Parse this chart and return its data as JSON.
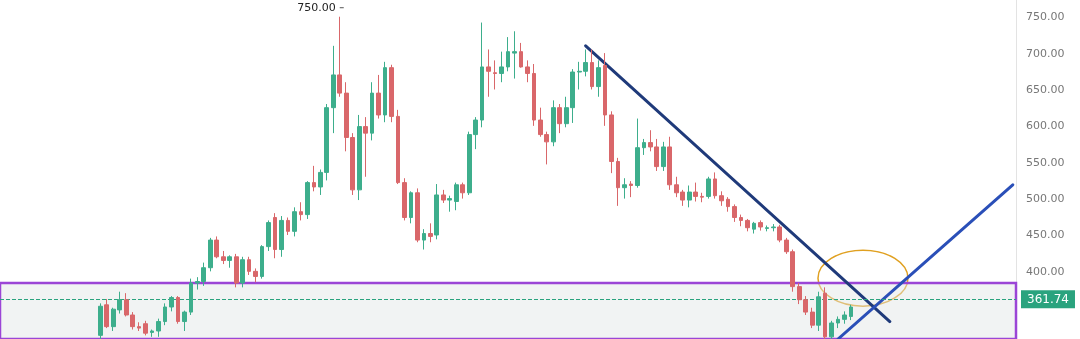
{
  "chart_data": {
    "type": "candlestick",
    "categories": [
      null,
      null,
      null,
      null,
      null,
      null,
      null,
      null,
      null,
      null,
      null,
      null,
      null,
      null,
      null,
      null,
      null,
      null,
      null,
      null,
      null,
      null,
      null,
      null,
      null,
      null,
      null,
      null,
      null,
      null,
      null,
      null,
      null,
      null,
      null,
      null,
      null,
      null,
      null,
      null,
      null,
      null,
      null,
      null,
      null,
      null,
      null,
      null,
      null,
      null,
      null,
      null,
      null,
      null,
      null,
      null,
      null,
      null,
      null,
      null,
      null,
      null,
      null,
      null,
      null,
      null,
      null,
      null,
      null,
      null,
      null,
      null,
      null,
      null,
      null,
      null,
      null,
      null,
      null,
      null,
      null,
      null,
      null,
      null,
      null,
      null,
      null,
      null,
      null,
      null,
      null,
      null,
      null,
      null,
      null,
      null,
      null,
      null,
      null,
      null,
      null,
      null,
      null,
      null,
      null,
      null,
      null,
      null,
      null,
      null,
      null,
      null,
      null,
      null,
      null,
      null,
      null,
      null,
      null,
      null,
      null,
      null,
      null,
      null,
      null,
      null,
      null,
      null,
      null,
      null,
      null,
      null,
      null,
      null,
      null,
      null,
      null,
      null,
      null,
      null,
      null,
      null,
      null,
      null,
      null,
      null,
      null,
      null,
      null,
      null,
      null,
      null,
      null,
      null,
      null,
      null,
      null
    ],
    "ohlc": [
      null,
      null,
      null,
      null,
      null,
      null,
      null,
      null,
      null,
      null,
      null,
      null,
      null,
      null,
      null,
      [
        312,
        356,
        305,
        352
      ],
      [
        354,
        362,
        322,
        324
      ],
      [
        324,
        350,
        318,
        348
      ],
      [
        347,
        372,
        342,
        361
      ],
      [
        361,
        370,
        338,
        340
      ],
      [
        340,
        344,
        320,
        324
      ],
      [
        324,
        330,
        318,
        322
      ],
      [
        328,
        332,
        312,
        315
      ],
      [
        316,
        320,
        310,
        318
      ],
      [
        318,
        335,
        310,
        331
      ],
      [
        331,
        356,
        326,
        351
      ],
      [
        351,
        366,
        345,
        364
      ],
      [
        364,
        366,
        328,
        331
      ],
      [
        331,
        346,
        318,
        344
      ],
      [
        344,
        390,
        340,
        384
      ],
      [
        384,
        392,
        375,
        386
      ],
      [
        386,
        412,
        380,
        405
      ],
      [
        405,
        446,
        400,
        443
      ],
      [
        443,
        448,
        418,
        420
      ],
      [
        420,
        428,
        410,
        415
      ],
      [
        415,
        422,
        405,
        420
      ],
      [
        420,
        424,
        378,
        384
      ],
      [
        384,
        420,
        378,
        416
      ],
      [
        416,
        420,
        395,
        400
      ],
      [
        400,
        404,
        385,
        393
      ],
      [
        393,
        436,
        390,
        434
      ],
      [
        434,
        470,
        428,
        467
      ],
      [
        474,
        480,
        418,
        430
      ],
      [
        430,
        476,
        420,
        470
      ],
      [
        470,
        474,
        450,
        455
      ],
      [
        455,
        488,
        448,
        482
      ],
      [
        482,
        495,
        470,
        478
      ],
      [
        478,
        524,
        472,
        522
      ],
      [
        522,
        545,
        510,
        516
      ],
      [
        516,
        540,
        505,
        536
      ],
      [
        536,
        630,
        525,
        625
      ],
      [
        625,
        710,
        590,
        670
      ],
      [
        670,
        750,
        640,
        645
      ],
      [
        645,
        660,
        565,
        584
      ],
      [
        584,
        590,
        505,
        512
      ],
      [
        512,
        615,
        498,
        599
      ],
      [
        599,
        612,
        530,
        590
      ],
      [
        590,
        660,
        580,
        645
      ],
      [
        645,
        670,
        610,
        615
      ],
      [
        615,
        688,
        605,
        680
      ],
      [
        680,
        684,
        605,
        613
      ],
      [
        613,
        622,
        520,
        522
      ],
      [
        522,
        528,
        470,
        474
      ],
      [
        474,
        510,
        466,
        508
      ],
      [
        508,
        514,
        440,
        443
      ],
      [
        443,
        458,
        430,
        452
      ],
      [
        452,
        466,
        440,
        448
      ],
      [
        450,
        520,
        444,
        505
      ],
      [
        505,
        512,
        494,
        498
      ],
      [
        498,
        504,
        482,
        500
      ],
      [
        496,
        522,
        484,
        519
      ],
      [
        519,
        522,
        500,
        508
      ],
      [
        508,
        592,
        505,
        588
      ],
      [
        588,
        612,
        568,
        608
      ],
      [
        608,
        742,
        598,
        681
      ],
      [
        681,
        705,
        640,
        675
      ],
      [
        673,
        690,
        650,
        672
      ],
      [
        672,
        702,
        660,
        681
      ],
      [
        681,
        722,
        675,
        702
      ],
      [
        700,
        730,
        665,
        702
      ],
      [
        702,
        714,
        680,
        681
      ],
      [
        681,
        690,
        660,
        672
      ],
      [
        672,
        685,
        600,
        608
      ],
      [
        608,
        625,
        585,
        588
      ],
      [
        588,
        592,
        547,
        578
      ],
      [
        578,
        635,
        572,
        625
      ],
      [
        625,
        630,
        590,
        603
      ],
      [
        603,
        640,
        598,
        625
      ],
      [
        625,
        678,
        604,
        674
      ],
      [
        674,
        688,
        650,
        675
      ],
      [
        675,
        705,
        668,
        687
      ],
      [
        687,
        705,
        650,
        654
      ],
      [
        654,
        690,
        640,
        680
      ],
      [
        683,
        700,
        600,
        615
      ],
      [
        615,
        620,
        535,
        551
      ],
      [
        551,
        556,
        490,
        515
      ],
      [
        515,
        528,
        500,
        519
      ],
      [
        520,
        524,
        502,
        518
      ],
      [
        518,
        610,
        515,
        570
      ],
      [
        570,
        582,
        560,
        577
      ],
      [
        577,
        594,
        565,
        571
      ],
      [
        571,
        582,
        538,
        544
      ],
      [
        544,
        578,
        538,
        571
      ],
      [
        571,
        585,
        512,
        519
      ],
      [
        519,
        530,
        502,
        508
      ],
      [
        509,
        512,
        490,
        498
      ],
      [
        498,
        518,
        488,
        509
      ],
      [
        509,
        522,
        496,
        503
      ],
      [
        503,
        508,
        495,
        502
      ],
      [
        503,
        530,
        500,
        527
      ],
      [
        527,
        536,
        500,
        504
      ],
      [
        504,
        510,
        490,
        497
      ],
      [
        499,
        502,
        482,
        489
      ],
      [
        489,
        492,
        468,
        474
      ],
      [
        474,
        478,
        462,
        470
      ],
      [
        470,
        472,
        455,
        460
      ],
      [
        458,
        468,
        452,
        466
      ],
      [
        467,
        470,
        456,
        461
      ],
      [
        459,
        463,
        455,
        460
      ],
      [
        460,
        465,
        455,
        461
      ],
      [
        461,
        464,
        440,
        443
      ],
      [
        443,
        446,
        424,
        427
      ],
      [
        427,
        430,
        372,
        379
      ],
      [
        379,
        384,
        355,
        361
      ],
      [
        361,
        366,
        340,
        344
      ],
      [
        344,
        350,
        322,
        326
      ],
      [
        326,
        372,
        318,
        365
      ],
      [
        370,
        378,
        305,
        310
      ],
      [
        310,
        332,
        305,
        329
      ],
      [
        329,
        338,
        322,
        334
      ],
      [
        334,
        345,
        328,
        340
      ],
      [
        338,
        354,
        333,
        351
      ],
      null,
      null,
      null,
      null,
      null,
      null,
      null,
      null,
      null,
      null,
      null,
      null,
      null,
      null,
      null,
      null,
      null,
      null,
      null,
      null,
      null,
      null,
      null,
      null,
      null
    ],
    "colors": [
      null,
      null,
      null,
      null,
      null,
      null,
      null,
      null,
      null,
      null,
      null,
      null,
      null,
      null,
      null,
      "#3dae8c",
      "#d9676a",
      "#3dae8c",
      "#3dae8c",
      "#d9676a",
      "#d9676a",
      "#d9676a",
      "#d9676a",
      "#3dae8c",
      "#3dae8c",
      "#3dae8c",
      "#3dae8c",
      "#d9676a",
      "#3dae8c",
      "#3dae8c",
      "#3dae8c",
      "#3dae8c",
      "#3dae8c",
      "#d9676a",
      "#d9676a",
      "#3dae8c",
      "#d9676a",
      "#3dae8c",
      "#d9676a",
      "#d9676a",
      "#3dae8c",
      "#3dae8c",
      "#d9676a",
      "#3dae8c",
      "#d9676a",
      "#3dae8c",
      "#d9676a",
      "#3dae8c",
      "#d9676a",
      "#3dae8c",
      "#3dae8c",
      "#3dae8c",
      "#d9676a",
      "#d9676a",
      "#d9676a",
      "#3dae8c",
      "#d9676a",
      "#3dae8c",
      "#d9676a",
      "#3dae8c",
      "#d9676a",
      "#d9676a",
      "#d9676a",
      "#3dae8c",
      "#d9676a",
      "#3dae8c",
      "#d9676a",
      "#3dae8c",
      "#d9676a",
      "#3dae8c",
      "#3dae8c",
      "#d9676a",
      "#3dae8c",
      "#3dae8c",
      "#3dae8c",
      "#d9676a",
      "#d9676a",
      "#3dae8c",
      "#3dae8c",
      "#3dae8c",
      "#d9676a",
      "#d9676a",
      "#d9676a",
      "#d9676a",
      "#d9676a",
      "#3dae8c",
      "#d9676a",
      "#3dae8c",
      "#3dae8c",
      "#3dae8c",
      "#3dae8c",
      "#d9676a",
      "#3dae8c",
      "#d9676a",
      "#d9676a",
      "#d9676a",
      "#3dae8c",
      "#d9676a",
      "#3dae8c",
      "#3dae8c",
      "#d9676a",
      "#d9676a",
      "#3dae8c",
      "#d9676a",
      "#d9676a",
      "#d9676a",
      "#3dae8c",
      "#d9676a",
      "#d9676a",
      "#3dae8c",
      "#d9676a",
      "#d9676a",
      "#d9676a",
      "#d9676a",
      "#d9676a",
      "#d9676a",
      "#3dae8c",
      "#d9676a",
      "#3dae8c",
      "#3dae8c",
      "#d9676a",
      "#d9676a",
      "#d9676a",
      "#d9676a",
      "#d9676a",
      "#d9676a",
      "#3dae8c",
      "#d9676a",
      "#3dae8c",
      "#3dae8c",
      "#3dae8c",
      "#3dae8c",
      null,
      null,
      null,
      null,
      null,
      null,
      null,
      null,
      null,
      null,
      null,
      null,
      null,
      null,
      null,
      null,
      null,
      null,
      null,
      null,
      null,
      null,
      null,
      null,
      null
    ],
    "series": [
      {
        "type": "line",
        "color": "#1f3a7a",
        "values": [
          null,
          null,
          null,
          null,
          null,
          null,
          null,
          null,
          null,
          null,
          null,
          null,
          null,
          null,
          null,
          null,
          null,
          null,
          null,
          null,
          null,
          null,
          null,
          null,
          null,
          null,
          null,
          null,
          null,
          null,
          null,
          null,
          null,
          null,
          null,
          null,
          null,
          null,
          null,
          null,
          null,
          null,
          null,
          null,
          null,
          null,
          null,
          null,
          null,
          null,
          null,
          null,
          null,
          null,
          null,
          null,
          null,
          null,
          null,
          null,
          null,
          null,
          null,
          null,
          null,
          null,
          null,
          null,
          null,
          null,
          null,
          null,
          null,
          null,
          null,
          null,
          null,
          null,
          null,
          null,
          null,
          null,
          null,
          null,
          null,
          null,
          null,
          null,
          null,
          null,
          710,
          null,
          null,
          null,
          null,
          null,
          null,
          null,
          null,
          null,
          null,
          null,
          null,
          null,
          null,
          null,
          null,
          null,
          null,
          null,
          null,
          null,
          null,
          null,
          null,
          null,
          null,
          null,
          null,
          null,
          null,
          null,
          null,
          null,
          null,
          null,
          null,
          null,
          null,
          null,
          null,
          null,
          null,
          null,
          null,
          null,
          null,
          331,
          null,
          null,
          null,
          null,
          null,
          null,
          null,
          null,
          null,
          null,
          null,
          null,
          null,
          null,
          null,
          null,
          null,
          null,
          null
        ]
      },
      {
        "type": "line",
        "color": "#2a4fb8",
        "values": [
          null,
          null,
          null,
          null,
          null,
          null,
          null,
          null,
          null,
          null,
          null,
          null,
          null,
          null,
          null,
          null,
          null,
          null,
          null,
          null,
          null,
          null,
          null,
          null,
          null,
          null,
          null,
          null,
          null,
          null,
          null,
          null,
          null,
          null,
          null,
          null,
          null,
          null,
          null,
          null,
          null,
          null,
          null,
          null,
          null,
          null,
          null,
          null,
          null,
          null,
          null,
          null,
          null,
          null,
          null,
          null,
          null,
          null,
          null,
          null,
          null,
          null,
          null,
          null,
          null,
          null,
          null,
          null,
          null,
          null,
          null,
          null,
          null,
          null,
          null,
          null,
          null,
          null,
          null,
          null,
          null,
          null,
          null,
          null,
          null,
          null,
          null,
          null,
          null,
          null,
          null,
          null,
          null,
          null,
          null,
          null,
          null,
          null,
          null,
          null,
          null,
          null,
          null,
          null,
          null,
          null,
          null,
          null,
          null,
          null,
          null,
          null,
          null,
          null,
          null,
          null,
          null,
          null,
          null,
          null,
          null,
          null,
          null,
          null,
          null,
          null,
          null,
          null,
          null,
          307,
          null,
          null,
          null,
          null,
          null,
          null,
          null,
          null,
          null,
          null,
          null,
          null,
          null,
          null,
          null,
          null,
          null,
          null,
          null,
          null,
          null,
          null,
          null,
          null,
          null,
          null,
          519
        ]
      }
    ],
    "ylim": [
      307,
      773
    ],
    "yticks": [
      {
        "value": 400,
        "label": "400.00"
      },
      {
        "value": 450,
        "label": "450.00"
      },
      {
        "value": 500,
        "label": "500.00"
      },
      {
        "value": 550,
        "label": "550.00"
      },
      {
        "value": 600,
        "label": "600.00"
      },
      {
        "value": 650,
        "label": "650.00"
      },
      {
        "value": 700,
        "label": "700.00"
      },
      {
        "value": 750,
        "label": "750.00"
      }
    ],
    "ref_lines": [
      {
        "axis": "y",
        "value": 361.74,
        "label": "361.74",
        "color": "#2aa37e",
        "line_style": "dashed"
      }
    ],
    "bands": [
      {
        "axis": "y",
        "from": 307,
        "to": 384,
        "color": "#9b45d6"
      }
    ],
    "annotations": [
      "750.00"
    ],
    "tick_labels": "y"
  }
}
